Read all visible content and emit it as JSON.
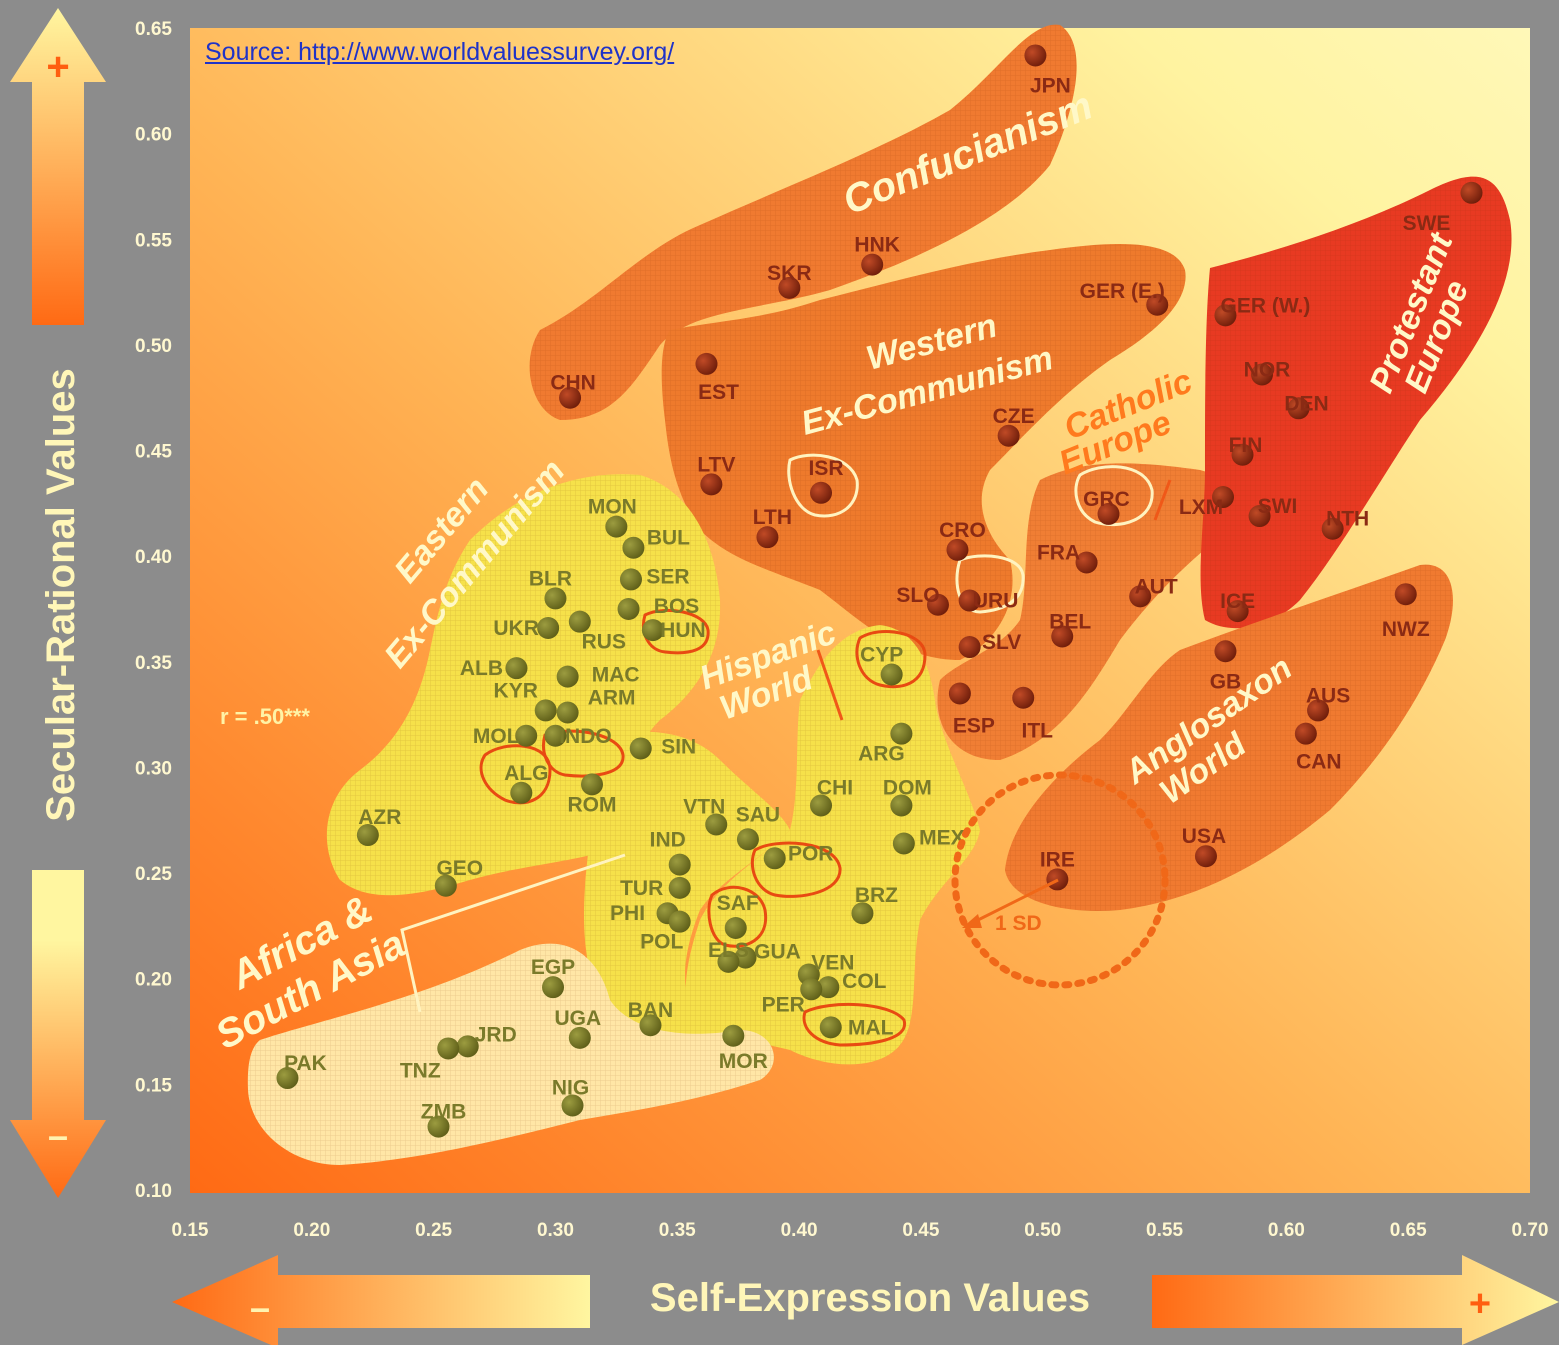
{
  "source_text": "Source: http://www.worldvaluessurvey.org/",
  "correlation": "r = .50***",
  "x_axis_title": "Self-Expression Values",
  "y_axis_title": "Secular-Rational Values",
  "arrow_signs": {
    "plus": "+",
    "minus": "–"
  },
  "sd_label": "1 SD",
  "colors": {
    "background": "#8c8c8c",
    "point": "#8a2a14",
    "point_light": "#7a7a26",
    "highlight_outline": "#e04a10"
  },
  "chart_data": {
    "type": "scatter",
    "xlim": [
      0.15,
      0.7
    ],
    "ylim": [
      0.1,
      0.65
    ],
    "xticks": [
      "0.15",
      "0.20",
      "0.25",
      "0.30",
      "0.35",
      "0.40",
      "0.45",
      "0.50",
      "0.55",
      "0.60",
      "0.65",
      "0.70"
    ],
    "yticks": [
      "0.10",
      "0.15",
      "0.20",
      "0.25",
      "0.30",
      "0.35",
      "0.40",
      "0.45",
      "0.50",
      "0.55",
      "0.60",
      "0.65"
    ],
    "points": [
      {
        "label": "JPN",
        "x": 0.497,
        "y": 0.637
      },
      {
        "label": "HNK",
        "x": 0.43,
        "y": 0.538
      },
      {
        "label": "SKR",
        "x": 0.396,
        "y": 0.527
      },
      {
        "label": "CHN",
        "x": 0.306,
        "y": 0.475
      },
      {
        "label": "EST",
        "x": 0.362,
        "y": 0.491
      },
      {
        "label": "GER (E.)",
        "x": 0.547,
        "y": 0.519
      },
      {
        "label": "GER (W.)",
        "x": 0.575,
        "y": 0.514
      },
      {
        "label": "SWE",
        "x": 0.676,
        "y": 0.572
      },
      {
        "label": "NOR",
        "x": 0.59,
        "y": 0.486
      },
      {
        "label": "DEN",
        "x": 0.605,
        "y": 0.47
      },
      {
        "label": "FIN",
        "x": 0.582,
        "y": 0.448
      },
      {
        "label": "SWI",
        "x": 0.589,
        "y": 0.419
      },
      {
        "label": "NTH",
        "x": 0.619,
        "y": 0.413
      },
      {
        "label": "ICE",
        "x": 0.58,
        "y": 0.374
      },
      {
        "label": "LXM",
        "x": 0.574,
        "y": 0.428
      },
      {
        "label": "CZE",
        "x": 0.486,
        "y": 0.457
      },
      {
        "label": "LTV",
        "x": 0.364,
        "y": 0.434
      },
      {
        "label": "ISR",
        "x": 0.409,
        "y": 0.43
      },
      {
        "label": "LTH",
        "x": 0.387,
        "y": 0.409
      },
      {
        "label": "GRC",
        "x": 0.527,
        "y": 0.42
      },
      {
        "label": "CRO",
        "x": 0.465,
        "y": 0.403
      },
      {
        "label": "FRA",
        "x": 0.518,
        "y": 0.397
      },
      {
        "label": "AUT",
        "x": 0.54,
        "y": 0.381
      },
      {
        "label": "SLO",
        "x": 0.457,
        "y": 0.377
      },
      {
        "label": "URU",
        "x": 0.47,
        "y": 0.379
      },
      {
        "label": "SLV",
        "x": 0.47,
        "y": 0.357
      },
      {
        "label": "BEL",
        "x": 0.508,
        "y": 0.362
      },
      {
        "label": "ESP",
        "x": 0.466,
        "y": 0.335
      },
      {
        "label": "ITL",
        "x": 0.492,
        "y": 0.333
      },
      {
        "label": "NWZ",
        "x": 0.649,
        "y": 0.382
      },
      {
        "label": "GB",
        "x": 0.575,
        "y": 0.355
      },
      {
        "label": "AUS",
        "x": 0.613,
        "y": 0.327
      },
      {
        "label": "CAN",
        "x": 0.608,
        "y": 0.316
      },
      {
        "label": "USA",
        "x": 0.567,
        "y": 0.258
      },
      {
        "label": "IRE",
        "x": 0.506,
        "y": 0.247
      },
      {
        "label": "MON",
        "x": 0.325,
        "y": 0.414
      },
      {
        "label": "BUL",
        "x": 0.332,
        "y": 0.404
      },
      {
        "label": "BLR",
        "x": 0.3,
        "y": 0.38
      },
      {
        "label": "SER",
        "x": 0.331,
        "y": 0.389
      },
      {
        "label": "BOS",
        "x": 0.33,
        "y": 0.375
      },
      {
        "label": "UKR",
        "x": 0.297,
        "y": 0.366
      },
      {
        "label": "RUS",
        "x": 0.31,
        "y": 0.369
      },
      {
        "label": "HUN",
        "x": 0.34,
        "y": 0.365
      },
      {
        "label": "ALB",
        "x": 0.284,
        "y": 0.347
      },
      {
        "label": "MAC",
        "x": 0.305,
        "y": 0.343
      },
      {
        "label": "KYR",
        "x": 0.296,
        "y": 0.327
      },
      {
        "label": "ARM",
        "x": 0.305,
        "y": 0.326
      },
      {
        "label": "MOL",
        "x": 0.288,
        "y": 0.315
      },
      {
        "label": "INDO",
        "x": 0.3,
        "y": 0.315
      },
      {
        "label": "ALG",
        "x": 0.286,
        "y": 0.288
      },
      {
        "label": "SIN",
        "x": 0.335,
        "y": 0.309
      },
      {
        "label": "ROM",
        "x": 0.315,
        "y": 0.292
      },
      {
        "label": "AZR",
        "x": 0.223,
        "y": 0.268
      },
      {
        "label": "GEO",
        "x": 0.255,
        "y": 0.244
      },
      {
        "label": "VTN",
        "x": 0.366,
        "y": 0.273
      },
      {
        "label": "SAU",
        "x": 0.379,
        "y": 0.266
      },
      {
        "label": "IND",
        "x": 0.351,
        "y": 0.254
      },
      {
        "label": "TUR",
        "x": 0.351,
        "y": 0.243
      },
      {
        "label": "PHI",
        "x": 0.346,
        "y": 0.231
      },
      {
        "label": "POL",
        "x": 0.351,
        "y": 0.227
      },
      {
        "label": "SAF",
        "x": 0.374,
        "y": 0.224
      },
      {
        "label": "POR",
        "x": 0.39,
        "y": 0.257
      },
      {
        "label": "CYP",
        "x": 0.438,
        "y": 0.344
      },
      {
        "label": "ARG",
        "x": 0.442,
        "y": 0.316
      },
      {
        "label": "CHI",
        "x": 0.409,
        "y": 0.282
      },
      {
        "label": "DOM",
        "x": 0.442,
        "y": 0.282
      },
      {
        "label": "MEX",
        "x": 0.443,
        "y": 0.264
      },
      {
        "label": "BRZ",
        "x": 0.426,
        "y": 0.231
      },
      {
        "label": "GUA",
        "x": 0.378,
        "y": 0.21
      },
      {
        "label": "ELS",
        "x": 0.371,
        "y": 0.208
      },
      {
        "label": "VEN",
        "x": 0.404,
        "y": 0.202
      },
      {
        "label": "COL",
        "x": 0.412,
        "y": 0.196
      },
      {
        "label": "PER",
        "x": 0.405,
        "y": 0.195
      },
      {
        "label": "MAL",
        "x": 0.413,
        "y": 0.177
      },
      {
        "label": "BAN",
        "x": 0.339,
        "y": 0.178
      },
      {
        "label": "MOR",
        "x": 0.373,
        "y": 0.173
      },
      {
        "label": "EGP",
        "x": 0.299,
        "y": 0.196
      },
      {
        "label": "UGA",
        "x": 0.31,
        "y": 0.172
      },
      {
        "label": "JRD",
        "x": 0.264,
        "y": 0.168
      },
      {
        "label": "TNZ",
        "x": 0.256,
        "y": 0.167
      },
      {
        "label": "PAK",
        "x": 0.19,
        "y": 0.153
      },
      {
        "label": "NIG",
        "x": 0.307,
        "y": 0.14
      },
      {
        "label": "ZMB",
        "x": 0.252,
        "y": 0.13
      }
    ],
    "regions": [
      {
        "name": "Confucianism"
      },
      {
        "name": "Western Ex-Communism"
      },
      {
        "name": "Catholic Europe"
      },
      {
        "name": "Protestant Europe"
      },
      {
        "name": "Anglosaxon World"
      },
      {
        "name": "Eastern Ex-Communism"
      },
      {
        "name": "Hispanic World"
      },
      {
        "name": "Africa & South Asia"
      }
    ]
  }
}
